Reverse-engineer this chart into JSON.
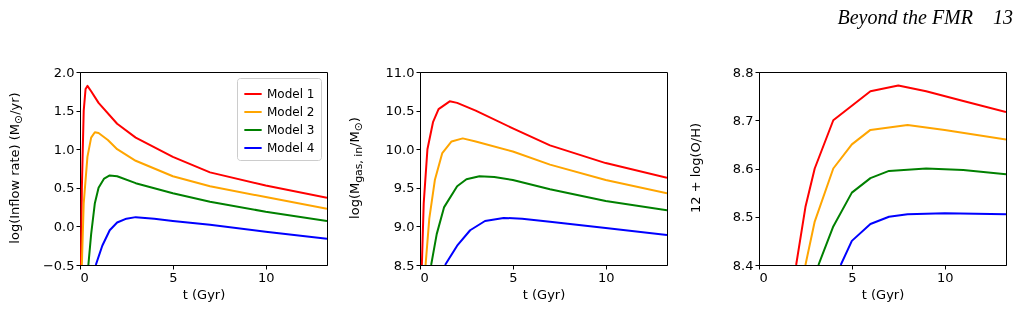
{
  "chart_data": [
    {
      "type": "line",
      "xlabel": "t (Gyr)",
      "ylabel": "log(Inflow rate) (M$_{⊙}$/yr)",
      "xlim": [
        0,
        13.3
      ],
      "ylim": [
        -0.5,
        2.0
      ],
      "xticks": [
        0,
        5,
        10
      ],
      "yticks": [
        -0.5,
        {
          "value": 0,
          "label": "0.0"
        },
        0.5,
        {
          "value": 1,
          "label": "1.0"
        },
        1.5,
        {
          "value": 2,
          "label": "2.0"
        }
      ],
      "legend": "top right",
      "grid": false,
      "series": [
        {
          "name": "Model 1",
          "color": "#ff0000",
          "x": [
            0.05,
            0.1,
            0.2,
            0.3,
            0.4,
            0.6,
            1.0,
            2,
            3,
            5,
            7,
            10,
            13.3
          ],
          "values": [
            -0.5,
            0.5,
            1.5,
            1.78,
            1.82,
            1.75,
            1.6,
            1.33,
            1.15,
            0.9,
            0.7,
            0.53,
            0.37
          ]
        },
        {
          "name": "Model 2",
          "color": "#ffa500",
          "x": [
            0.1,
            0.2,
            0.4,
            0.6,
            0.8,
            1.0,
            1.5,
            2,
            3,
            5,
            7,
            10,
            13.3
          ],
          "values": [
            -0.5,
            0.3,
            0.9,
            1.15,
            1.22,
            1.21,
            1.12,
            1.0,
            0.85,
            0.65,
            0.52,
            0.38,
            0.23
          ]
        },
        {
          "name": "Model 3",
          "color": "#008000",
          "x": [
            0.45,
            0.6,
            0.8,
            1.0,
            1.3,
            1.6,
            2,
            3,
            5,
            7,
            10,
            13.3
          ],
          "values": [
            -0.5,
            -0.1,
            0.3,
            0.5,
            0.62,
            0.66,
            0.65,
            0.56,
            0.43,
            0.32,
            0.19,
            0.07
          ]
        },
        {
          "name": "Model 4",
          "color": "#0000ff",
          "x": [
            0.85,
            1.2,
            1.6,
            2,
            2.5,
            3,
            4,
            5,
            7,
            10,
            13.3
          ],
          "values": [
            -0.5,
            -0.25,
            -0.05,
            0.05,
            0.1,
            0.12,
            0.1,
            0.07,
            0.02,
            -0.07,
            -0.16
          ]
        }
      ]
    },
    {
      "type": "line",
      "xlabel": "t (Gyr)",
      "ylabel": "log(M$_{gas, in}$/M$_{⊙}$)",
      "xlim": [
        0,
        13.3
      ],
      "ylim": [
        8.5,
        11.0
      ],
      "xticks": [
        0,
        5,
        10
      ],
      "yticks": [
        8.5,
        {
          "value": 9,
          "label": "9.0"
        },
        9.5,
        {
          "value": 10,
          "label": "10.0"
        },
        10.5,
        {
          "value": 11,
          "label": "11.0"
        }
      ],
      "grid": false,
      "series": [
        {
          "color": "#ff0000",
          "x": [
            0.1,
            0.2,
            0.4,
            0.7,
            1.0,
            1.6,
            2,
            3,
            5,
            7,
            10,
            13.3
          ],
          "values": [
            8.5,
            9.3,
            10.0,
            10.35,
            10.52,
            10.62,
            10.6,
            10.5,
            10.27,
            10.05,
            9.82,
            9.63
          ]
        },
        {
          "color": "#ffa500",
          "x": [
            0.3,
            0.5,
            0.8,
            1.2,
            1.7,
            2.3,
            3,
            5,
            7,
            10,
            13.3
          ],
          "values": [
            8.5,
            9.1,
            9.6,
            9.95,
            10.1,
            10.14,
            10.1,
            9.97,
            9.8,
            9.6,
            9.43
          ]
        },
        {
          "color": "#008000",
          "x": [
            0.6,
            0.9,
            1.3,
            2,
            2.5,
            3.2,
            4,
            5,
            7,
            10,
            13.3
          ],
          "values": [
            8.5,
            8.9,
            9.25,
            9.52,
            9.61,
            9.65,
            9.64,
            9.6,
            9.48,
            9.33,
            9.21
          ]
        },
        {
          "color": "#0000ff",
          "x": [
            1.35,
            2,
            2.7,
            3.5,
            4.5,
            5.5,
            7,
            10,
            13.3
          ],
          "values": [
            8.5,
            8.75,
            8.95,
            9.07,
            9.11,
            9.1,
            9.06,
            8.98,
            8.89
          ]
        }
      ]
    },
    {
      "type": "line",
      "xlabel": "t (Gyr)",
      "ylabel": "12 + log(O/H)",
      "xlim": [
        0,
        13.3
      ],
      "ylim": [
        8.4,
        8.8
      ],
      "xticks": [
        0,
        5,
        10
      ],
      "yticks": [
        8.4,
        8.5,
        8.6,
        8.7,
        8.8
      ],
      "grid": false,
      "annotations": [
        "Beyond the FMR    13"
      ],
      "series": [
        {
          "color": "#ff0000",
          "x": [
            2.0,
            2.5,
            3,
            4,
            5,
            6,
            7.5,
            9,
            11,
            13.3
          ],
          "values": [
            8.4,
            8.52,
            8.6,
            8.7,
            8.73,
            8.76,
            8.772,
            8.76,
            8.74,
            8.717
          ]
        },
        {
          "color": "#ffa500",
          "x": [
            2.5,
            3,
            4,
            5,
            6,
            8,
            10,
            13.3
          ],
          "values": [
            8.4,
            8.49,
            8.6,
            8.65,
            8.68,
            8.69,
            8.68,
            8.66
          ]
        },
        {
          "color": "#008000",
          "x": [
            3.2,
            4,
            5,
            6,
            7,
            9,
            11,
            13.3
          ],
          "values": [
            8.4,
            8.48,
            8.55,
            8.58,
            8.595,
            8.6,
            8.597,
            8.588
          ]
        },
        {
          "color": "#0000ff",
          "x": [
            4.4,
            5,
            6,
            7,
            8,
            10,
            13.3
          ],
          "values": [
            8.4,
            8.45,
            8.485,
            8.5,
            8.505,
            8.507,
            8.505
          ]
        }
      ]
    }
  ]
}
